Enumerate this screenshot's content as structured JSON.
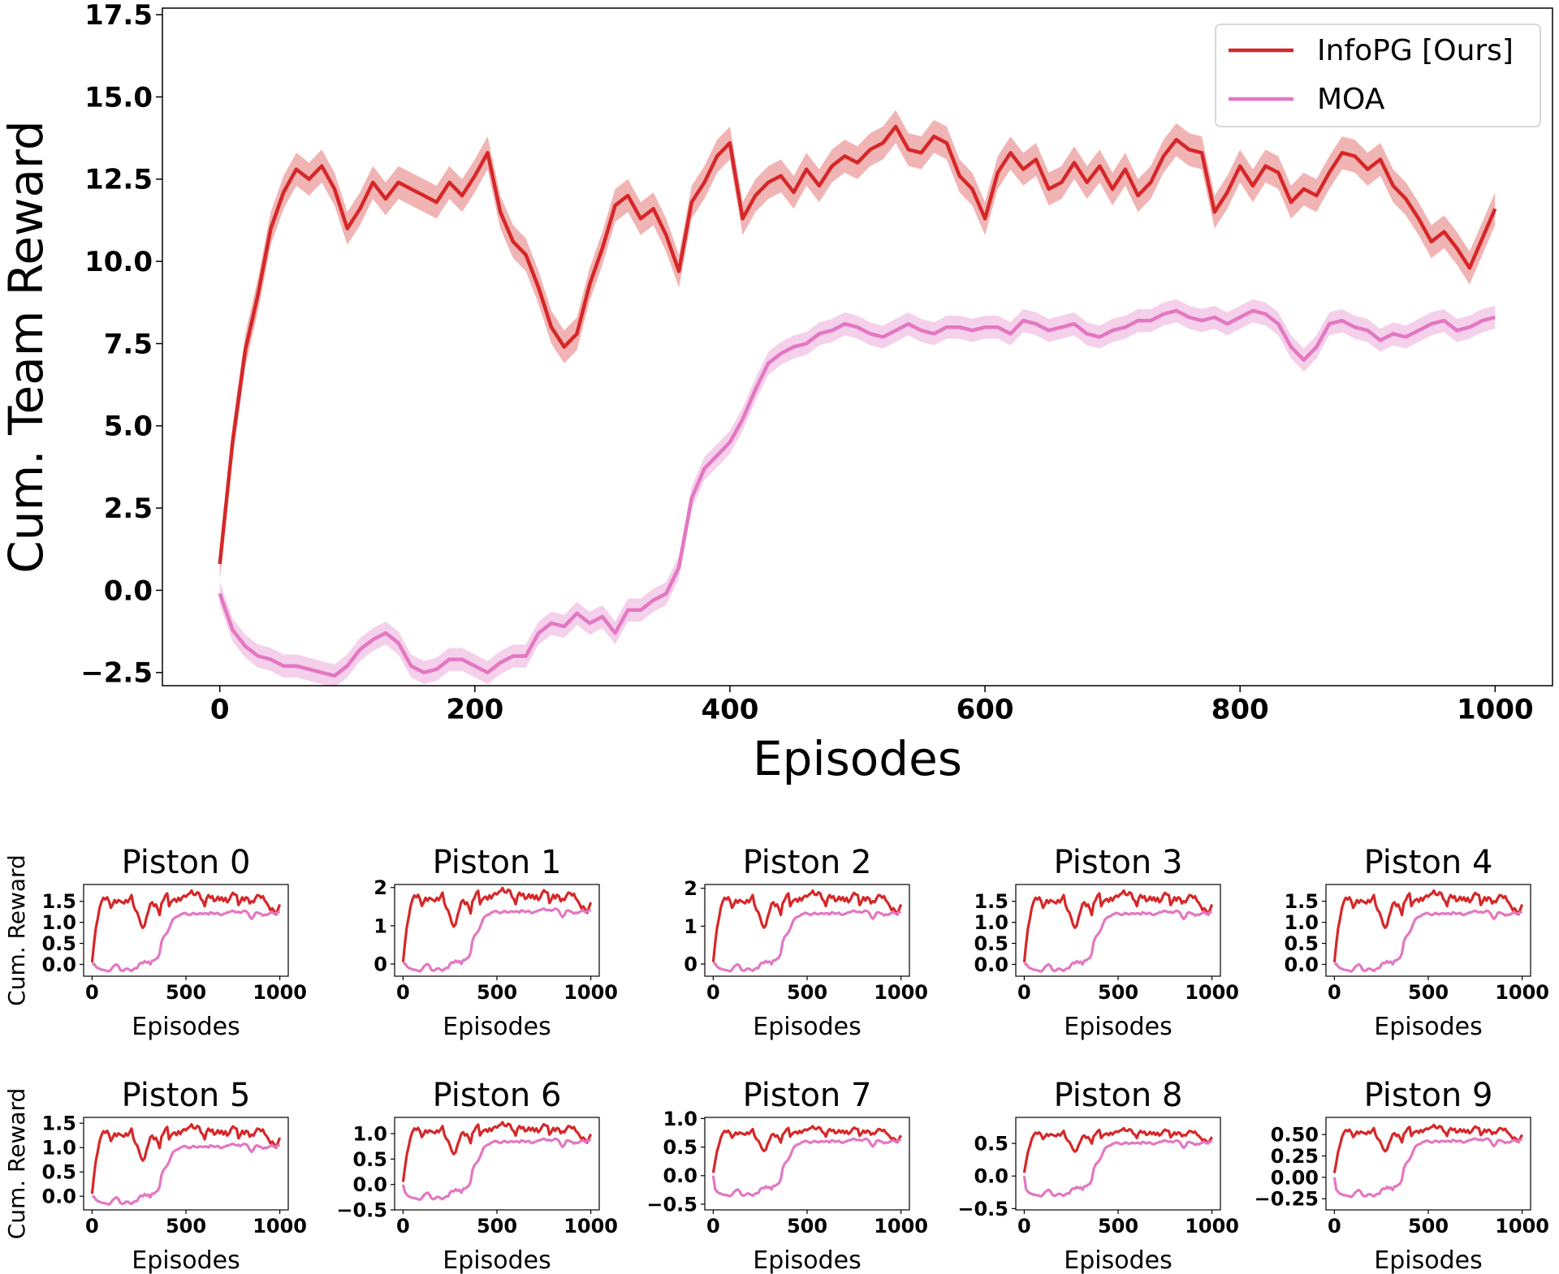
{
  "colors": {
    "infopg": "#d62728",
    "infopg_band": "rgba(214,39,40,0.35)",
    "moa": "#e377c2",
    "moa_band": "rgba(227,119,194,0.35)"
  },
  "chart_data": [
    {
      "id": "main",
      "type": "line",
      "title": "",
      "xlabel": "Episodes",
      "ylabel": "Cum. Team Reward",
      "xlim": [
        -45,
        1045
      ],
      "ylim": [
        -2.9,
        17.7
      ],
      "xticks": [
        0,
        200,
        400,
        600,
        800,
        1000
      ],
      "xtick_labels": [
        "0",
        "200",
        "400",
        "600",
        "800",
        "1000"
      ],
      "yticks": [
        -2.5,
        0,
        2.5,
        5,
        7.5,
        10,
        12.5,
        15,
        17.5
      ],
      "ytick_labels": [
        "−2.5",
        "0.0",
        "2.5",
        "5.0",
        "7.5",
        "10.0",
        "12.5",
        "15.0",
        "17.5"
      ],
      "legend": {
        "placement": "top-right",
        "entries": [
          "InfoPG [Ours]",
          "MOA"
        ]
      },
      "grid": false,
      "series": [
        {
          "name": "InfoPG [Ours]",
          "band": 0.5,
          "x": [
            0,
            10,
            20,
            30,
            40,
            50,
            60,
            70,
            80,
            90,
            100,
            110,
            120,
            130,
            140,
            150,
            160,
            170,
            180,
            190,
            200,
            210,
            220,
            230,
            240,
            250,
            260,
            270,
            280,
            290,
            300,
            310,
            320,
            330,
            340,
            350,
            360,
            370,
            380,
            390,
            400,
            410,
            420,
            430,
            440,
            450,
            460,
            470,
            480,
            490,
            500,
            510,
            520,
            530,
            540,
            550,
            560,
            570,
            580,
            590,
            600,
            610,
            620,
            630,
            640,
            650,
            660,
            670,
            680,
            690,
            700,
            710,
            720,
            730,
            740,
            750,
            760,
            770,
            780,
            790,
            800,
            810,
            820,
            830,
            840,
            850,
            860,
            870,
            880,
            890,
            900,
            910,
            920,
            930,
            940,
            950,
            960,
            970,
            980,
            990,
            1000
          ],
          "values": [
            0.8,
            4.5,
            7.3,
            9.0,
            11.0,
            12.1,
            12.8,
            12.5,
            12.9,
            12.2,
            11.0,
            11.6,
            12.4,
            11.9,
            12.4,
            12.2,
            12.0,
            11.8,
            12.4,
            12.0,
            12.6,
            13.3,
            11.5,
            10.6,
            10.2,
            9.2,
            8.0,
            7.4,
            7.8,
            9.3,
            10.4,
            11.7,
            12.0,
            11.3,
            11.6,
            10.8,
            9.7,
            11.8,
            12.4,
            13.2,
            13.6,
            11.3,
            12.0,
            12.4,
            12.6,
            12.1,
            12.8,
            12.3,
            12.9,
            13.2,
            13.0,
            13.4,
            13.6,
            14.1,
            13.4,
            13.3,
            13.8,
            13.6,
            12.6,
            12.2,
            11.3,
            12.7,
            13.3,
            12.8,
            13.1,
            12.2,
            12.4,
            13.0,
            12.4,
            12.9,
            12.2,
            12.8,
            12.0,
            12.4,
            13.2,
            13.7,
            13.4,
            13.3,
            11.5,
            12.1,
            12.9,
            12.3,
            12.9,
            12.7,
            11.8,
            12.2,
            12.0,
            12.7,
            13.3,
            13.2,
            12.8,
            13.1,
            12.3,
            11.9,
            11.3,
            10.6,
            10.9,
            10.4,
            9.8,
            10.7,
            11.6
          ]
        },
        {
          "name": "MOA",
          "band": 0.35,
          "x": [
            0,
            10,
            20,
            30,
            40,
            50,
            60,
            70,
            80,
            90,
            100,
            110,
            120,
            130,
            140,
            150,
            160,
            170,
            180,
            190,
            200,
            210,
            220,
            230,
            240,
            250,
            260,
            270,
            280,
            290,
            300,
            310,
            320,
            330,
            340,
            350,
            360,
            370,
            380,
            390,
            400,
            410,
            420,
            430,
            440,
            450,
            460,
            470,
            480,
            490,
            500,
            510,
            520,
            530,
            540,
            550,
            560,
            570,
            580,
            590,
            600,
            610,
            620,
            630,
            640,
            650,
            660,
            670,
            680,
            690,
            700,
            710,
            720,
            730,
            740,
            750,
            760,
            770,
            780,
            790,
            800,
            810,
            820,
            830,
            840,
            850,
            860,
            870,
            880,
            890,
            900,
            910,
            920,
            930,
            940,
            950,
            960,
            970,
            980,
            990,
            1000
          ],
          "values": [
            -0.1,
            -1.2,
            -1.7,
            -2.0,
            -2.1,
            -2.3,
            -2.3,
            -2.4,
            -2.5,
            -2.6,
            -2.3,
            -1.8,
            -1.5,
            -1.3,
            -1.6,
            -2.3,
            -2.5,
            -2.4,
            -2.1,
            -2.1,
            -2.3,
            -2.5,
            -2.2,
            -2.0,
            -2.0,
            -1.3,
            -1.0,
            -1.1,
            -0.7,
            -1.0,
            -0.8,
            -1.3,
            -0.6,
            -0.6,
            -0.3,
            -0.1,
            0.7,
            2.8,
            3.7,
            4.1,
            4.5,
            5.2,
            6.1,
            6.9,
            7.2,
            7.4,
            7.5,
            7.8,
            7.9,
            8.1,
            8.0,
            7.8,
            7.7,
            7.9,
            8.1,
            7.9,
            7.8,
            8.0,
            8.0,
            7.9,
            8.0,
            8.0,
            7.8,
            8.2,
            8.1,
            7.9,
            8.0,
            8.1,
            7.8,
            7.7,
            7.9,
            8.0,
            8.2,
            8.2,
            8.4,
            8.5,
            8.3,
            8.2,
            8.3,
            8.1,
            8.3,
            8.5,
            8.4,
            8.1,
            7.4,
            7.0,
            7.4,
            8.1,
            8.2,
            8.0,
            7.9,
            7.6,
            7.8,
            7.7,
            7.9,
            8.1,
            8.2,
            7.9,
            8.0,
            8.2,
            8.3
          ]
        }
      ]
    },
    {
      "id": "p0",
      "type": "line",
      "title": "Piston 0",
      "xlabel": "Episodes",
      "ylabel": "Cum. Reward",
      "top": 1.72,
      "bottom": 0.0,
      "ylim": [
        -0.28,
        1.9
      ],
      "yticks": [
        0.0,
        0.5,
        1.0,
        1.5
      ],
      "ytick_labels": [
        "0.0",
        "0.5",
        "1.0",
        "1.5"
      ],
      "xlim": [
        -45,
        1045
      ],
      "xticks": [
        0,
        500,
        1000
      ],
      "xtick_labels": [
        "0",
        "500",
        "1000"
      ]
    },
    {
      "id": "p1",
      "type": "line",
      "title": "Piston 1",
      "xlabel": "Episodes",
      "ylabel": "",
      "top": 1.95,
      "bottom": -0.02,
      "ylim": [
        -0.32,
        2.08
      ],
      "yticks": [
        0,
        1,
        2
      ],
      "ytick_labels": [
        "0",
        "1",
        "2"
      ],
      "xlim": [
        -45,
        1045
      ],
      "xticks": [
        0,
        500,
        1000
      ],
      "xtick_labels": [
        "0",
        "500",
        "1000"
      ]
    },
    {
      "id": "p2",
      "type": "line",
      "title": "Piston 2",
      "xlabel": "Episodes",
      "ylabel": "",
      "top": 1.9,
      "bottom": 0.0,
      "ylim": [
        -0.32,
        2.1
      ],
      "yticks": [
        0,
        1,
        2
      ],
      "ytick_labels": [
        "0",
        "1",
        "2"
      ],
      "xlim": [
        -45,
        1045
      ],
      "xticks": [
        0,
        500,
        1000
      ],
      "xtick_labels": [
        "0",
        "500",
        "1000"
      ]
    },
    {
      "id": "p3",
      "type": "line",
      "title": "Piston 3",
      "xlabel": "Episodes",
      "ylabel": "",
      "top": 1.72,
      "bottom": 0.0,
      "ylim": [
        -0.28,
        1.9
      ],
      "yticks": [
        0.0,
        0.5,
        1.0,
        1.5
      ],
      "ytick_labels": [
        "0.0",
        "0.5",
        "1.0",
        "1.5"
      ],
      "xlim": [
        -45,
        1045
      ],
      "xticks": [
        0,
        500,
        1000
      ],
      "xtick_labels": [
        "0",
        "500",
        "1000"
      ]
    },
    {
      "id": "p4",
      "type": "line",
      "title": "Piston 4",
      "xlabel": "Episodes",
      "ylabel": "",
      "top": 1.72,
      "bottom": 0.0,
      "ylim": [
        -0.28,
        1.9
      ],
      "yticks": [
        0.0,
        0.5,
        1.0,
        1.5
      ],
      "ytick_labels": [
        "0.0",
        "0.5",
        "1.0",
        "1.5"
      ],
      "xlim": [
        -45,
        1045
      ],
      "xticks": [
        0,
        500,
        1000
      ],
      "xtick_labels": [
        "0",
        "500",
        "1000"
      ]
    },
    {
      "id": "p5",
      "type": "line",
      "title": "Piston 5",
      "xlabel": "Episodes",
      "ylabel": "Cum. Reward",
      "top": 1.45,
      "bottom": 0.0,
      "ylim": [
        -0.28,
        1.62
      ],
      "yticks": [
        0.0,
        0.5,
        1.0,
        1.5
      ],
      "ytick_labels": [
        "0.0",
        "0.5",
        "1.0",
        "1.5"
      ],
      "xlim": [
        -45,
        1045
      ],
      "xticks": [
        0,
        500,
        1000
      ],
      "xtick_labels": [
        "0",
        "500",
        "1000"
      ]
    },
    {
      "id": "p6",
      "type": "line",
      "title": "Piston 6",
      "xlabel": "Episodes",
      "ylabel": "",
      "top": 1.2,
      "bottom": -0.02,
      "ylim": [
        -0.5,
        1.32
      ],
      "yticks": [
        -0.5,
        0.0,
        0.5,
        1.0
      ],
      "ytick_labels": [
        "−0.5",
        "0.0",
        "0.5",
        "1.0"
      ],
      "xlim": [
        -45,
        1045
      ],
      "xticks": [
        0,
        500,
        1000
      ],
      "xtick_labels": [
        "0",
        "500",
        "1000"
      ]
    },
    {
      "id": "p7",
      "type": "line",
      "title": "Piston 7",
      "xlabel": "Episodes",
      "ylabel": "",
      "top": 0.85,
      "bottom": 0.0,
      "ylim": [
        -0.6,
        1.02
      ],
      "yticks": [
        -0.5,
        0.0,
        0.5,
        1.0
      ],
      "ytick_labels": [
        "−0.5",
        "0.0",
        "0.5",
        "1.0"
      ],
      "xlim": [
        -45,
        1045
      ],
      "xticks": [
        0,
        500,
        1000
      ],
      "xtick_labels": [
        "0",
        "500",
        "1000"
      ]
    },
    {
      "id": "p8",
      "type": "line",
      "title": "Piston 8",
      "xlabel": "Episodes",
      "ylabel": "",
      "top": 0.72,
      "bottom": 0.02,
      "ylim": [
        -0.52,
        0.9
      ],
      "yticks": [
        -0.5,
        0.0,
        0.5
      ],
      "ytick_labels": [
        "−0.5",
        "0.0",
        "0.5"
      ],
      "xlim": [
        -45,
        1045
      ],
      "xticks": [
        0,
        500,
        1000
      ],
      "xtick_labels": [
        "0",
        "500",
        "1000"
      ]
    },
    {
      "id": "p9",
      "type": "line",
      "title": "Piston 9",
      "xlabel": "Episodes",
      "ylabel": "",
      "top": 0.6,
      "bottom": 0.0,
      "ylim": [
        -0.38,
        0.7
      ],
      "yticks": [
        -0.25,
        0.0,
        0.25,
        0.5
      ],
      "ytick_labels": [
        "−0.25",
        "0.00",
        "0.25",
        "0.50"
      ],
      "xlim": [
        -45,
        1045
      ],
      "xticks": [
        0,
        500,
        1000
      ],
      "xtick_labels": [
        "0",
        "500",
        "1000"
      ]
    }
  ]
}
